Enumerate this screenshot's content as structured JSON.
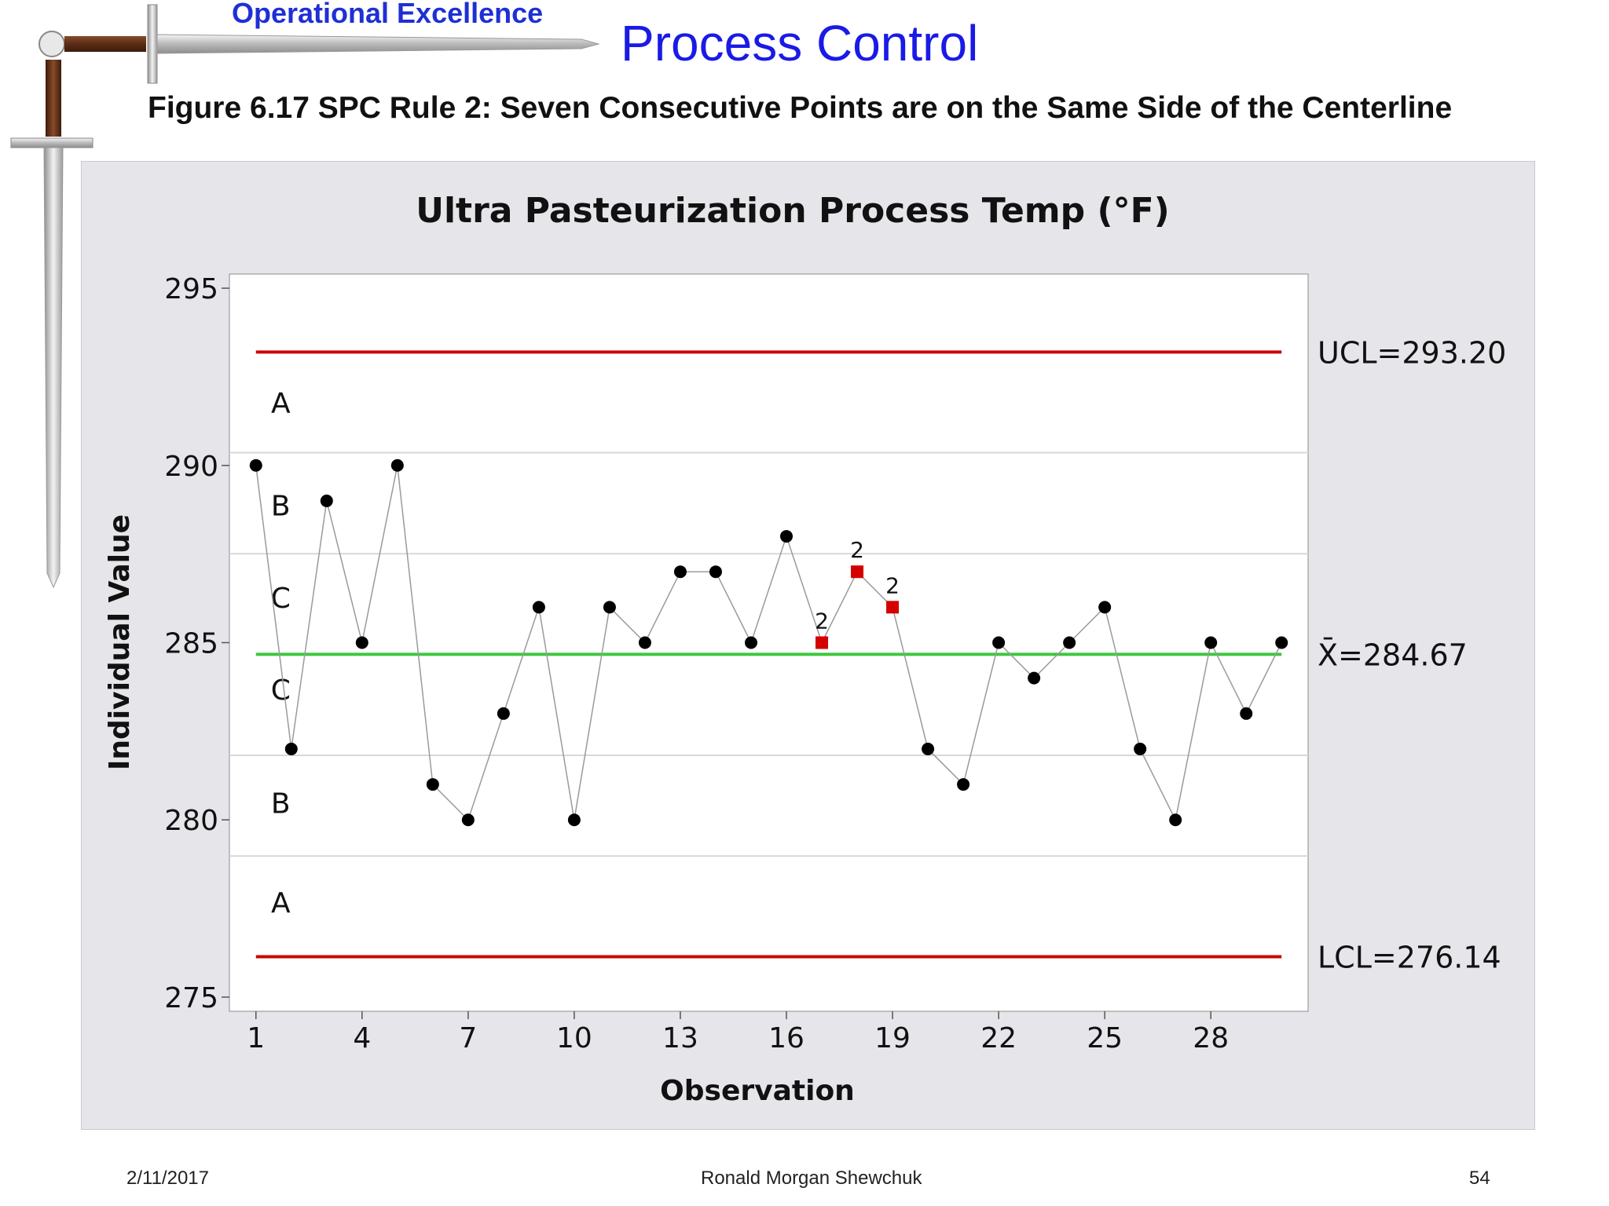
{
  "header": {
    "brand": "Operational Excellence",
    "title": "Process Control",
    "figure_caption": "Figure 6.17  SPC Rule 2:  Seven Consecutive Points are on the Same Side of the Centerline"
  },
  "footer": {
    "date": "2/11/2017",
    "author": "Ronald Morgan Shewchuk",
    "page": "54"
  },
  "chart_data": {
    "type": "line",
    "title": "Ultra Pasteurization Process Temp (°F)",
    "xlabel": "Observation",
    "ylabel": "Individual Value",
    "x_ticks": [
      1,
      4,
      7,
      10,
      13,
      16,
      19,
      22,
      25,
      28
    ],
    "y_ticks": [
      275,
      280,
      285,
      290,
      295
    ],
    "xlim": [
      0.25,
      30.75
    ],
    "ylim": [
      274.6,
      295.4
    ],
    "x": [
      1,
      2,
      3,
      4,
      5,
      6,
      7,
      8,
      9,
      10,
      11,
      12,
      13,
      14,
      15,
      16,
      17,
      18,
      19,
      20,
      21,
      22,
      23,
      24,
      25,
      26,
      27,
      28,
      29,
      30
    ],
    "values": [
      290,
      282,
      289,
      285,
      290,
      281,
      280,
      283,
      286,
      280,
      286,
      285,
      287,
      287,
      285,
      288,
      285,
      287,
      286,
      282,
      281,
      285,
      284,
      285,
      286,
      282,
      280,
      285,
      283,
      285
    ],
    "flagged": [
      {
        "x": 17,
        "label": "2"
      },
      {
        "x": 18,
        "label": "2"
      },
      {
        "x": 19,
        "label": "2"
      }
    ],
    "control_limits": {
      "ucl": {
        "value": 293.2,
        "label": "UCL=293.20"
      },
      "center": {
        "value": 284.67,
        "label": "X̄=284.67"
      },
      "lcl": {
        "value": 276.14,
        "label": "LCL=276.14"
      }
    },
    "zone_boundaries": [
      290.36,
      287.51,
      281.82,
      278.98
    ],
    "zones": [
      {
        "label": "A",
        "value": 291.8
      },
      {
        "label": "B",
        "value": 288.9
      },
      {
        "label": "C",
        "value": 286.3
      },
      {
        "label": "C",
        "value": 283.7
      },
      {
        "label": "B",
        "value": 280.5
      },
      {
        "label": "A",
        "value": 277.7
      }
    ],
    "colors": {
      "limit": "#cc0000",
      "center": "#3cc83c",
      "point": "#000000",
      "flagged_point": "#d40000",
      "line": "#9a9a9a",
      "zone_line": "#d8d8d8"
    },
    "grid": false
  }
}
